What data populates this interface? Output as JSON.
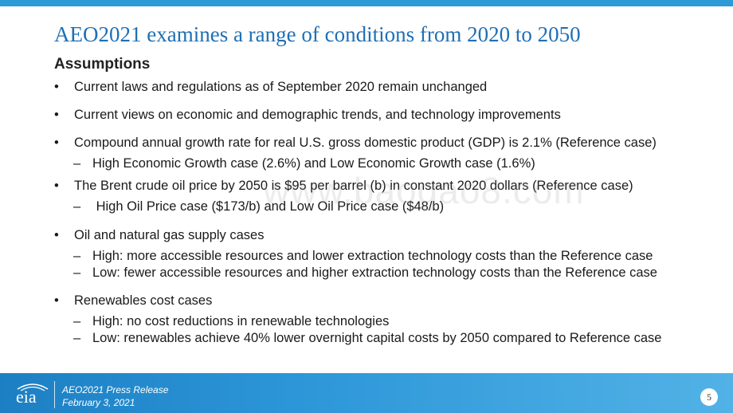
{
  "title": "AEO2021 examines a range of conditions from 2020 to 2050",
  "subhead": "Assumptions",
  "bullets": [
    {
      "marker": "•",
      "text": "Current laws and regulations as of September 2020 remain unchanged"
    },
    {
      "marker": "•",
      "text": "Current views on economic and demographic trends, and technology improvements"
    },
    {
      "marker": "•",
      "text": "Compound annual growth rate for real U.S. gross domestic product (GDP) is 2.1% (Reference case)"
    },
    {
      "marker": "–",
      "text": "High Economic Growth case (2.6%) and Low Economic Growth case (1.6%)"
    },
    {
      "marker": "•",
      "text": "The Brent crude oil price by 2050 is $95 per barrel (b) in constant 2020 dollars (Reference case)"
    },
    {
      "marker": "–",
      "text": " High Oil Price case ($173/b) and Low Oil Price case ($48/b)"
    },
    {
      "marker": "•",
      "text": "Oil and natural gas supply cases"
    },
    {
      "marker": "–",
      "text": "High: more accessible resources and lower extraction technology costs than the Reference case"
    },
    {
      "marker": "–",
      "text": "Low: fewer accessible resources and higher extraction technology costs than the Reference case"
    },
    {
      "marker": "•",
      "text": "Renewables cost cases"
    },
    {
      "marker": "–",
      "text": "High: no cost reductions in renewable technologies"
    },
    {
      "marker": "–",
      "text": "Low: renewables achieve 40% lower overnight capital costs by 2050 compared to Reference case"
    }
  ],
  "watermark": "www.baogao8.com",
  "footer": {
    "logo_text": "eia",
    "line1": "AEO2021 Press Release",
    "line2": "February 3, 2021",
    "page_number": "5"
  },
  "colors": {
    "accent": "#2e9ad6",
    "title": "#1f6fb5"
  }
}
